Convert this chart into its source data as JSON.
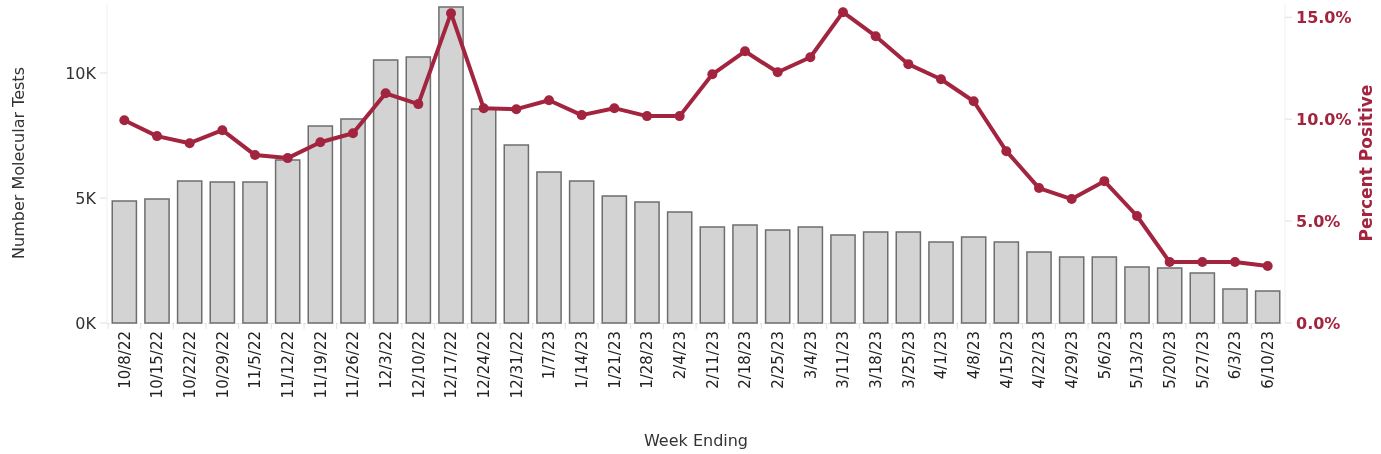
{
  "chart_data": {
    "type": "bar",
    "xlabel": "Week Ending",
    "ylabel": "Number Molecular Tests",
    "y2label": "Percent Positive",
    "categories": [
      "10/8/22",
      "10/15/22",
      "10/22/22",
      "10/29/22",
      "11/5/22",
      "11/12/22",
      "11/19/22",
      "11/26/22",
      "12/3/22",
      "12/10/22",
      "12/17/22",
      "12/24/22",
      "12/31/22",
      "1/7/23",
      "1/14/23",
      "1/21/23",
      "1/28/23",
      "2/4/23",
      "2/11/23",
      "2/18/23",
      "2/25/23",
      "3/4/23",
      "3/11/23",
      "3/18/23",
      "3/25/23",
      "4/1/23",
      "4/8/23",
      "4/15/23",
      "4/22/23",
      "4/29/23",
      "5/6/23",
      "5/13/23",
      "5/20/23",
      "5/27/23",
      "6/3/23",
      "6/10/23"
    ],
    "series": [
      {
        "color": "#d3d3d3",
        "values": [
          4880,
          4960,
          5680,
          5640,
          5640,
          6520,
          7880,
          8160,
          10520,
          10640,
          12640,
          8560,
          7120,
          6040,
          5680,
          5080,
          4840,
          4440,
          3840,
          3920,
          3720,
          3840,
          3520,
          3640,
          3640,
          3240,
          3440,
          3240,
          2840,
          2640,
          2640,
          2240,
          2200,
          2000,
          1360,
          1280
        ]
      },
      {
        "type": "line",
        "axis": "y2",
        "color": "#a3243f",
        "marker": "circle",
        "values": [
          9.95,
          9.17,
          8.82,
          9.46,
          8.24,
          8.09,
          8.87,
          9.31,
          11.27,
          10.74,
          15.2,
          10.54,
          10.49,
          10.93,
          10.2,
          10.54,
          10.15,
          10.15,
          12.2,
          13.33,
          12.3,
          13.04,
          15.25,
          14.07,
          12.7,
          11.96,
          10.88,
          8.43,
          6.62,
          6.08,
          6.96,
          5.25,
          2.99,
          2.99,
          2.99,
          2.8
        ]
      }
    ],
    "ylim": [
      0,
      12800
    ],
    "yticks": [
      {
        "value": 0,
        "label": "0K"
      },
      {
        "value": 5000,
        "label": "5K"
      },
      {
        "value": 10000,
        "label": "10K"
      }
    ],
    "y2lim": [
      0,
      15.7
    ],
    "y2ticks": [
      {
        "value": 0,
        "label": "0.0%"
      },
      {
        "value": 5,
        "label": "5.0%"
      },
      {
        "value": 10,
        "label": "10.0%"
      },
      {
        "value": 15,
        "label": "15.0%"
      }
    ],
    "grid": false
  }
}
